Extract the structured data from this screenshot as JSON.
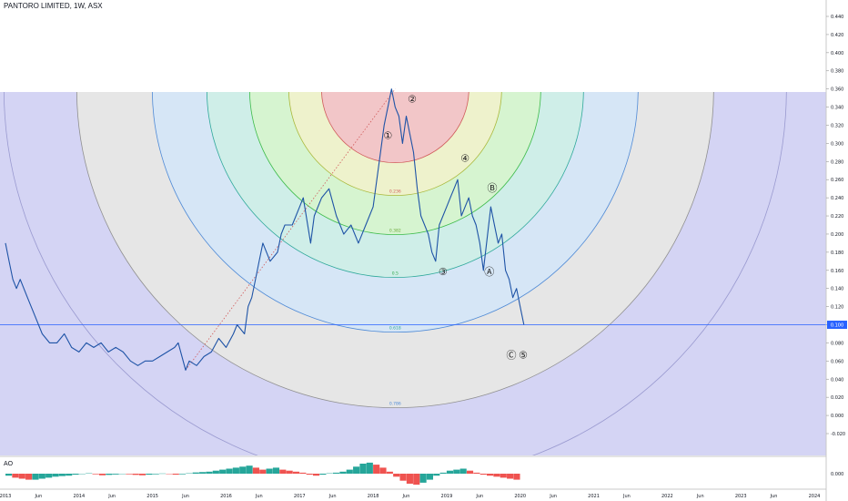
{
  "header": {
    "title": "PANTORO LIMITED, 1W, ASX"
  },
  "colors": {
    "price_line": "#1e53a6",
    "horizontal_line": "#2962ff",
    "price_badge": "#2962ff",
    "ao_up": "#26a69a",
    "ao_down": "#ef5350",
    "ring_colors": [
      "#f2c6c8",
      "#eef2cc",
      "#d6f4d0",
      "#cfeee8",
      "#d6e6f6",
      "#e6e6e6",
      "#d4d4f4"
    ]
  },
  "chart_data": [
    {
      "type": "line",
      "title": "PANTORO LIMITED, 1W, ASX",
      "xlabel": "",
      "ylabel": "",
      "xlim": [
        "2013-01",
        "2024-07"
      ],
      "ylim": [
        -0.04,
        0.46
      ],
      "y_ticks": [
        "0.440",
        "0.420",
        "0.400",
        "0.380",
        "0.360",
        "0.340",
        "0.320",
        "0.300",
        "0.280",
        "0.260",
        "0.240",
        "0.220",
        "0.200",
        "0.180",
        "0.160",
        "0.140",
        "0.120",
        "0.100",
        "0.080",
        "0.060",
        "0.040",
        "0.020",
        "0.000",
        "-0.020"
      ],
      "y_tick_values": [
        0.44,
        0.42,
        0.4,
        0.38,
        0.36,
        0.34,
        0.32,
        0.3,
        0.28,
        0.26,
        0.24,
        0.22,
        0.2,
        0.18,
        0.16,
        0.14,
        0.12,
        0.1,
        0.08,
        0.06,
        0.04,
        0.02,
        0.0,
        -0.02
      ],
      "x_ticks": [
        "2013",
        "Jun",
        "2014",
        "Jun",
        "2015",
        "Jun",
        "2016",
        "Jun",
        "2017",
        "Jun",
        "2018",
        "Jun",
        "2019",
        "Jun",
        "2020",
        "Jun",
        "2021",
        "Jun",
        "2022",
        "Jun",
        "2023",
        "Jun",
        "2024"
      ],
      "x_tick_values": [
        2013.0,
        2013.45,
        2014.0,
        2014.45,
        2015.0,
        2015.45,
        2016.0,
        2016.45,
        2017.0,
        2017.45,
        2018.0,
        2018.45,
        2019.0,
        2019.45,
        2020.0,
        2020.45,
        2021.0,
        2021.45,
        2022.0,
        2022.45,
        2023.0,
        2023.45,
        2024.0
      ],
      "series": [
        {
          "x": [
            2013.0,
            2013.05,
            2013.1,
            2013.15,
            2013.2,
            2013.3,
            2013.4,
            2013.5,
            2013.6,
            2013.7,
            2013.8,
            2013.9,
            2014.0,
            2014.1,
            2014.2,
            2014.3,
            2014.4,
            2014.5,
            2014.6,
            2014.7,
            2014.8,
            2014.9,
            2015.0,
            2015.1,
            2015.2,
            2015.3,
            2015.35,
            2015.45,
            2015.5,
            2015.6,
            2015.7,
            2015.8,
            2015.9,
            2016.0,
            2016.1,
            2016.15,
            2016.25,
            2016.3,
            2016.35,
            2016.4,
            2016.45,
            2016.5,
            2016.6,
            2016.7,
            2016.75,
            2016.8,
            2016.9,
            2017.0,
            2017.05,
            2017.15,
            2017.2,
            2017.3,
            2017.4,
            2017.5,
            2017.6,
            2017.7,
            2017.8,
            2017.9,
            2018.0,
            2018.1,
            2018.15,
            2018.2,
            2018.25,
            2018.3,
            2018.35,
            2018.4,
            2018.45,
            2018.5,
            2018.55,
            2018.6,
            2018.65,
            2018.75,
            2018.8,
            2018.85,
            2018.9,
            2019.0,
            2019.05,
            2019.1,
            2019.15,
            2019.2,
            2019.3,
            2019.35,
            2019.4,
            2019.45,
            2019.5,
            2019.6,
            2019.65,
            2019.7,
            2019.75,
            2019.8,
            2019.85,
            2019.9,
            2019.95,
            2020.0,
            2020.05
          ],
          "y": [
            0.19,
            0.17,
            0.15,
            0.14,
            0.15,
            0.13,
            0.11,
            0.09,
            0.08,
            0.08,
            0.09,
            0.075,
            0.07,
            0.08,
            0.075,
            0.08,
            0.07,
            0.075,
            0.07,
            0.06,
            0.055,
            0.06,
            0.06,
            0.065,
            0.07,
            0.075,
            0.08,
            0.05,
            0.06,
            0.055,
            0.065,
            0.07,
            0.085,
            0.075,
            0.09,
            0.1,
            0.09,
            0.12,
            0.13,
            0.15,
            0.17,
            0.19,
            0.17,
            0.18,
            0.2,
            0.21,
            0.21,
            0.23,
            0.24,
            0.19,
            0.22,
            0.24,
            0.25,
            0.22,
            0.2,
            0.21,
            0.19,
            0.21,
            0.23,
            0.29,
            0.32,
            0.34,
            0.36,
            0.34,
            0.33,
            0.3,
            0.33,
            0.31,
            0.29,
            0.25,
            0.22,
            0.2,
            0.18,
            0.17,
            0.21,
            0.23,
            0.24,
            0.25,
            0.26,
            0.22,
            0.24,
            0.22,
            0.21,
            0.19,
            0.16,
            0.23,
            0.21,
            0.19,
            0.2,
            0.16,
            0.15,
            0.13,
            0.14,
            0.12,
            0.1
          ]
        }
      ],
      "last_price": "0.100",
      "horizontal_line_value": 0.1,
      "fib_arc_levels": [
        "0.236",
        "0.382",
        "0.5",
        "0.618",
        "0.786"
      ],
      "wave_labels": [
        {
          "text": "①",
          "x": 2018.2,
          "y": 0.305
        },
        {
          "text": "②",
          "x": 2018.53,
          "y": 0.345
        },
        {
          "text": "③",
          "x": 2018.95,
          "y": 0.155
        },
        {
          "text": "④",
          "x": 2019.25,
          "y": 0.28
        },
        {
          "text": "Ⓐ",
          "x": 2019.58,
          "y": 0.155
        },
        {
          "text": "Ⓑ",
          "x": 2019.62,
          "y": 0.247
        },
        {
          "text": "Ⓒ",
          "x": 2019.88,
          "y": 0.063
        },
        {
          "text": "⑤",
          "x": 2020.04,
          "y": 0.063
        }
      ]
    },
    {
      "type": "bar",
      "title": "AO",
      "ylabel": "",
      "y_ticks": [
        "0.000"
      ],
      "values": [
        -0.01,
        -0.02,
        -0.025,
        -0.03,
        -0.03,
        -0.025,
        -0.02,
        -0.015,
        -0.012,
        -0.01,
        -0.005,
        0.0,
        0.002,
        -0.003,
        -0.008,
        -0.006,
        -0.004,
        0.0,
        -0.003,
        -0.006,
        -0.008,
        -0.005,
        -0.003,
        0.001,
        -0.002,
        -0.005,
        -0.003,
        0.002,
        0.006,
        0.008,
        0.01,
        0.015,
        0.02,
        0.025,
        0.03,
        0.035,
        0.04,
        0.03,
        0.02,
        0.025,
        0.03,
        0.02,
        0.015,
        0.01,
        0.005,
        -0.005,
        -0.01,
        -0.005,
        0.002,
        0.005,
        0.01,
        0.02,
        0.035,
        0.05,
        0.055,
        0.045,
        0.03,
        0.01,
        -0.015,
        -0.035,
        -0.05,
        -0.055,
        -0.045,
        -0.03,
        -0.01,
        0.005,
        0.015,
        0.02,
        0.025,
        0.015,
        0.005,
        -0.005,
        -0.01,
        -0.015,
        -0.02,
        -0.025,
        -0.03
      ]
    }
  ]
}
